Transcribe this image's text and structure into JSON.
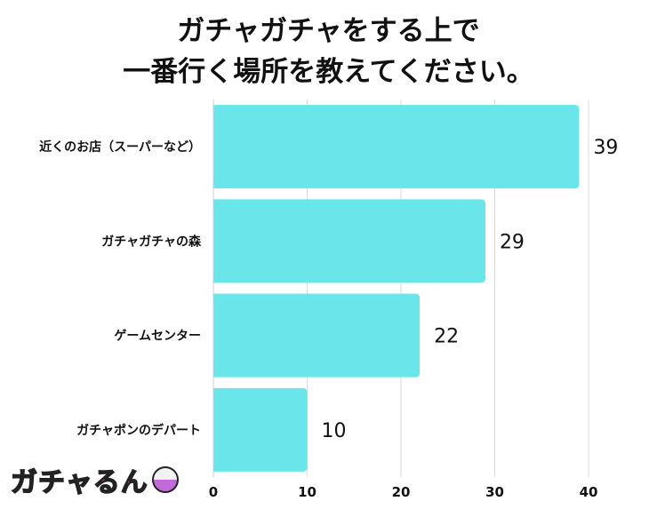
{
  "title_lines": [
    "ガチャガチャをする上で",
    "一番行く場所を教えてください。"
  ],
  "logo": {
    "text": "ガチャるん",
    "icon": "gacha-capsule-icon"
  },
  "colors": {
    "bar": "#6ae5e9",
    "grid": "#d9d9d9",
    "text": "#111111"
  },
  "chart_data": {
    "type": "bar",
    "orientation": "horizontal",
    "categories": [
      "近くのお店（スーパーなど）",
      "ガチャガチャの森",
      "ゲームセンター",
      "ガチャポンのデパート"
    ],
    "values": [
      39,
      29,
      22,
      10
    ],
    "xlim": [
      0,
      40
    ],
    "xticks": [
      0,
      10,
      20,
      30,
      40
    ],
    "grid": true,
    "legend": "none"
  }
}
